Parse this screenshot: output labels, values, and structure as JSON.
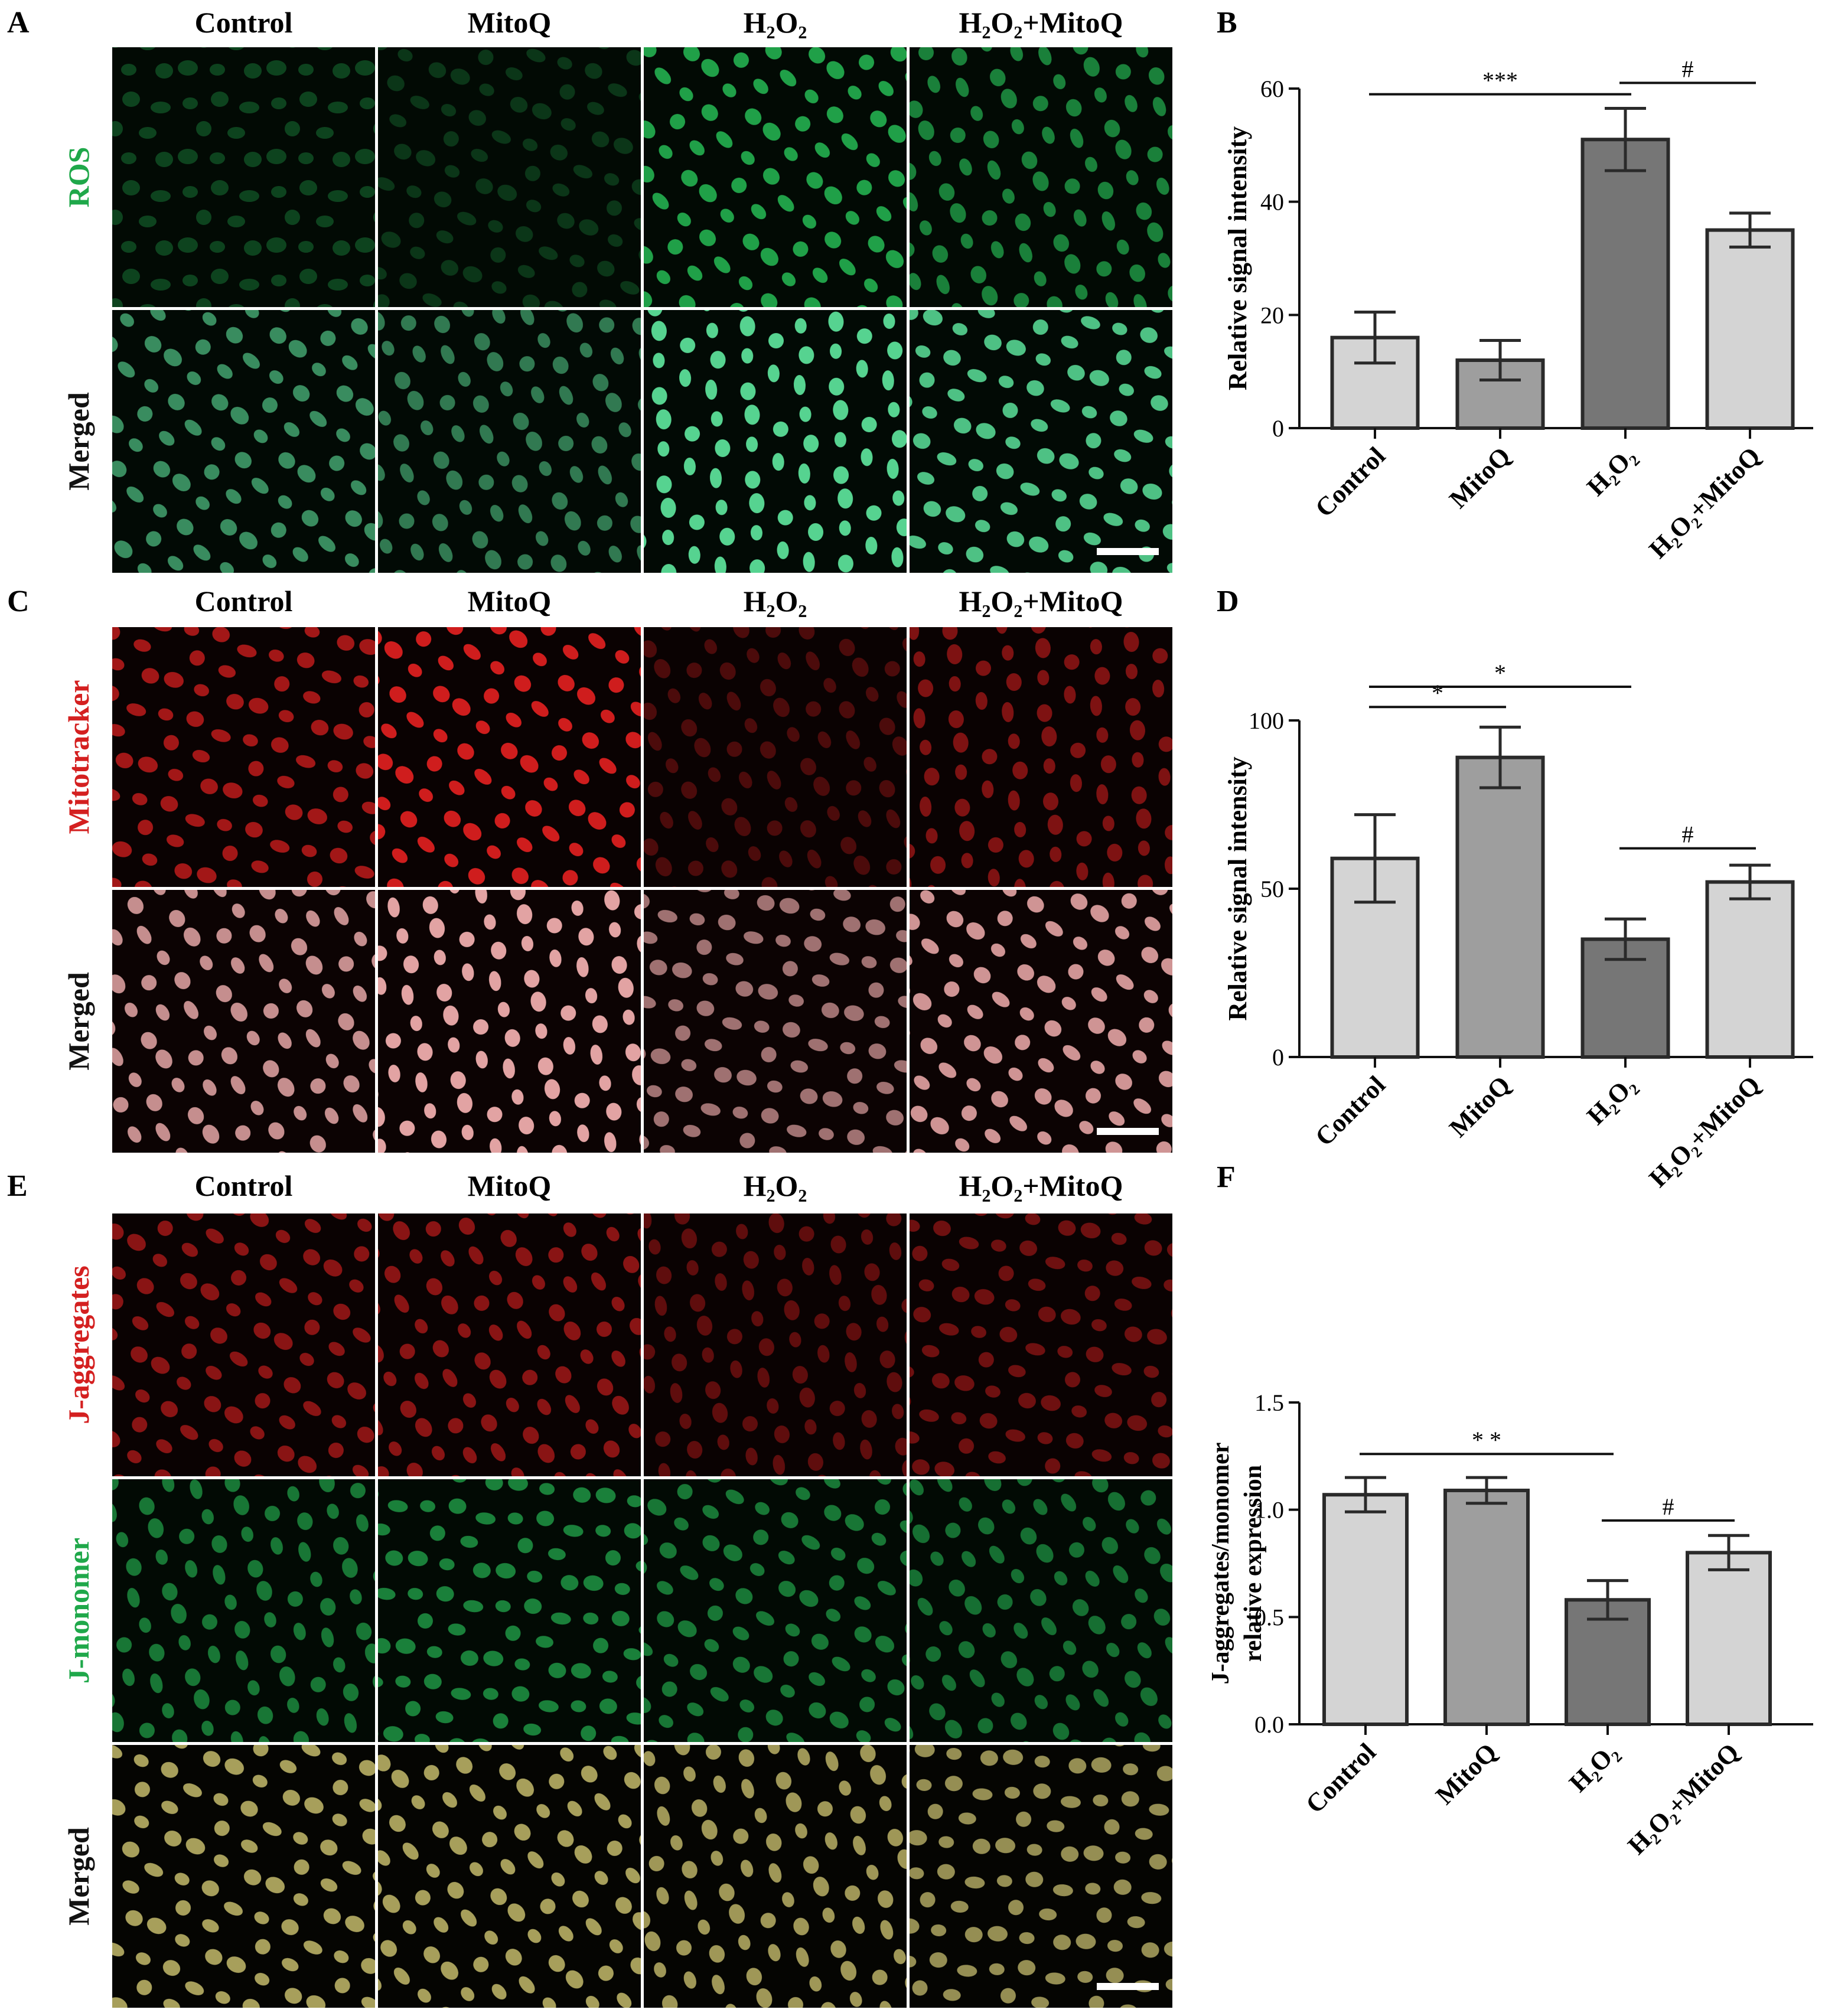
{
  "colors": {
    "ros_green": "#1fa84a",
    "mito_red": "#d42020",
    "jagg_red": "#d42020",
    "jmono_green": "#1fa84a",
    "bar_light": "#d4d4d4",
    "bar_mid": "#9e9e9e",
    "bar_dark": "#767676",
    "scale_bar": "#ffffff"
  },
  "panels": [
    {
      "letter": "A",
      "group_labels": [
        "Control",
        "MitoQ",
        "H₂O₂",
        "H₂O₂+MitoQ"
      ],
      "rows": [
        {
          "label": "ROS",
          "label_color": "#1fa84a",
          "stain": "green",
          "brightness": [
            0.18,
            0.1,
            0.75,
            0.55
          ]
        },
        {
          "label": "Merged",
          "label_color": "#111111",
          "stain": "green-merge",
          "brightness": [
            0.55,
            0.45,
            0.95,
            0.85
          ]
        }
      ]
    },
    {
      "letter": "C",
      "group_labels": [
        "Control",
        "MitoQ",
        "H₂O₂",
        "H₂O₂+MitoQ"
      ],
      "rows": [
        {
          "label": "Mitotracker",
          "label_color": "#d42020",
          "stain": "red",
          "brightness": [
            0.7,
            0.95,
            0.2,
            0.5
          ]
        },
        {
          "label": "Merged",
          "label_color": "#111111",
          "stain": "red-merge",
          "brightness": [
            0.8,
            0.95,
            0.6,
            0.85
          ]
        }
      ]
    },
    {
      "letter": "E",
      "group_labels": [
        "Control",
        "MitoQ",
        "H₂O₂",
        "H₂O₂+MitoQ"
      ],
      "rows": [
        {
          "label": "J-aggregates",
          "label_color": "#d42020",
          "stain": "red",
          "brightness": [
            0.55,
            0.55,
            0.3,
            0.4
          ]
        },
        {
          "label": "J-monomer",
          "label_color": "#1fa84a",
          "stain": "green",
          "brightness": [
            0.5,
            0.55,
            0.5,
            0.45
          ]
        },
        {
          "label": "Merged",
          "label_color": "#111111",
          "stain": "yellow-merge",
          "brightness": [
            0.8,
            0.8,
            0.75,
            0.7
          ]
        }
      ]
    }
  ],
  "chart_data": [
    {
      "panel": "B",
      "type": "bar",
      "categories": [
        "Control",
        "MitoQ",
        "H₂O₂",
        "H₂O₂+MitoQ"
      ],
      "values": [
        16,
        12,
        51,
        35
      ],
      "errors": [
        4.5,
        3.5,
        5.5,
        3
      ],
      "bar_colors": [
        "#d4d4d4",
        "#9e9e9e",
        "#767676",
        "#d4d4d4"
      ],
      "ylabel": "Relative signal intensity",
      "ylim": [
        0,
        60
      ],
      "yticks": [
        0,
        20,
        40,
        60
      ],
      "significance": [
        {
          "from": 0,
          "to": 2,
          "label": "***",
          "y": 59
        },
        {
          "from": 2,
          "to": 3,
          "label": "#",
          "y": 61
        }
      ]
    },
    {
      "panel": "D",
      "type": "bar",
      "categories": [
        "Control",
        "MitoQ",
        "H₂O₂",
        "H₂O₂+MitoQ"
      ],
      "values": [
        59,
        89,
        35,
        52
      ],
      "errors": [
        13,
        9,
        6,
        5
      ],
      "bar_colors": [
        "#d4d4d4",
        "#9e9e9e",
        "#767676",
        "#d4d4d4"
      ],
      "ylabel": "Relative signal intensity",
      "ylim": [
        0,
        100
      ],
      "yticks": [
        0,
        50,
        100
      ],
      "significance": [
        {
          "from": 0,
          "to": 1,
          "label": "*",
          "y": 104
        },
        {
          "from": 0,
          "to": 2,
          "label": "*",
          "y": 110
        },
        {
          "from": 2,
          "to": 3,
          "label": "#",
          "y": 62
        }
      ]
    },
    {
      "panel": "F",
      "type": "bar",
      "categories": [
        "Control",
        "MitoQ",
        "H₂O₂",
        "H₂O₂+MitoQ"
      ],
      "values": [
        1.07,
        1.09,
        0.58,
        0.8
      ],
      "errors": [
        0.08,
        0.06,
        0.09,
        0.08
      ],
      "bar_colors": [
        "#d4d4d4",
        "#9e9e9e",
        "#767676",
        "#d4d4d4"
      ],
      "ylabel_lines": [
        "J-aggregates/monomer",
        "relative expression"
      ],
      "ylim": [
        0,
        1.5
      ],
      "yticks": [
        0.0,
        0.5,
        1.0,
        1.5
      ],
      "ytick_labels": [
        "0.0",
        "0.5",
        "1.0",
        "1.5"
      ],
      "significance": [
        {
          "from": 0,
          "to": 2,
          "label": "* *",
          "y": 1.26
        },
        {
          "from": 2,
          "to": 3,
          "label": "#",
          "y": 0.95
        }
      ]
    }
  ]
}
